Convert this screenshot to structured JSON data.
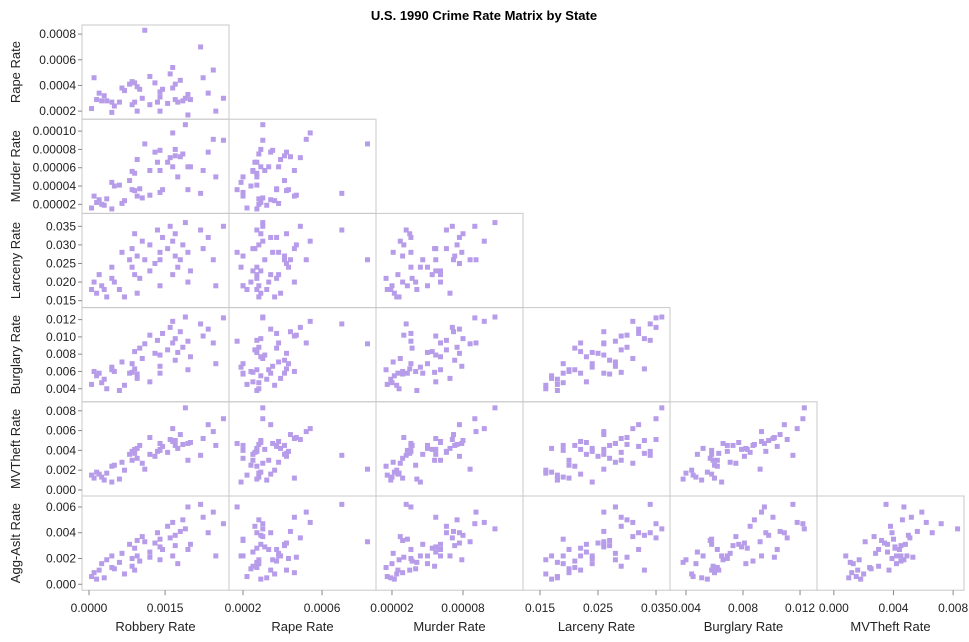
{
  "chart_data": {
    "type": "scatter",
    "title": "U.S. 1990 Crime Rate Matrix by State",
    "layout": "lower-triangle scatterplot matrix",
    "point_color": "#b79ce9",
    "grid": false,
    "x_variables": [
      "Robbery Rate",
      "Rape Rate",
      "Murder Rate",
      "Larceny Rate",
      "Burglary Rate",
      "MVTheft Rate"
    ],
    "y_variables": [
      "Rape Rate",
      "Murder Rate",
      "Larceny Rate",
      "Burglary Rate",
      "MVTheft Rate",
      "Agg-Aslt Rate"
    ],
    "variables": [
      "Robbery Rate",
      "Rape Rate",
      "Murder Rate",
      "Larceny Rate",
      "Burglary Rate",
      "MVTheft Rate",
      "Agg-Aslt Rate"
    ],
    "x_ticks": [
      [
        "0.0000",
        "0.0015"
      ],
      [
        "0.0002",
        "0.0006"
      ],
      [
        "0.00002",
        "0.00008"
      ],
      [
        "0.015",
        "0.025",
        "0.035"
      ],
      [
        "0.004",
        "0.008",
        "0.012"
      ],
      [
        "0.000",
        "0.004",
        "0.008"
      ]
    ],
    "y_ticks": [
      [
        "0.0002",
        "0.0004",
        "0.0006",
        "0.0008"
      ],
      [
        "0.00002",
        "0.00004",
        "0.00006",
        "0.00008",
        "0.00010"
      ],
      [
        "0.015",
        "0.020",
        "0.025",
        "0.030",
        "0.035"
      ],
      [
        "0.004",
        "0.006",
        "0.008",
        "0.010",
        "0.012"
      ],
      [
        "0.000",
        "0.002",
        "0.004",
        "0.006",
        "0.008"
      ],
      [
        "0.000",
        "0.002",
        "0.004",
        "0.006"
      ]
    ],
    "x_ranges": [
      [
        -0.000138,
        0.00276
      ],
      [
        0.000129,
        0.000873
      ],
      [
        6.5e-06,
        0.0001307
      ],
      [
        0.01207,
        0.03741
      ],
      [
        0.00288,
        0.01319
      ],
      [
        -0.00113,
        0.00873
      ]
    ],
    "y_ranges": [
      [
        0.000137,
        0.000871
      ],
      [
        1.01e-05,
        0.000113
      ],
      [
        0.01313,
        0.03847
      ],
      [
        0.00249,
        0.01339
      ],
      [
        -0.00061,
        0.00891
      ],
      [
        -0.00046,
        0.00685
      ]
    ],
    "states": [
      [
        5e-05,
        0.00022,
        1.6e-05,
        0.018,
        0.0045,
        0.0015,
        0.0006
      ],
      [
        0.0001,
        0.00046,
        2.9e-05,
        0.02,
        0.006,
        0.0012,
        0.0009
      ],
      [
        0.00015,
        0.00029,
        2.2e-05,
        0.017,
        0.0055,
        0.0018,
        0.0004
      ],
      [
        0.0002,
        0.00034,
        2.5e-05,
        0.022,
        0.0058,
        0.0016,
        0.0011
      ],
      [
        0.00025,
        0.00028,
        2e-05,
        0.019,
        0.0047,
        0.0013,
        0.0016
      ],
      [
        0.00035,
        0.00028,
        2.6e-05,
        0.016,
        0.004,
        0.0017,
        0.0019
      ],
      [
        0.00045,
        0.00027,
        1.5e-05,
        0.021,
        0.0062,
        0.0024,
        0.0013
      ],
      [
        0.00045,
        0.00019,
        4.4e-05,
        0.024,
        0.0065,
        0.0008,
        0.0022
      ],
      [
        0.0006,
        0.00027,
        4.1e-05,
        0.018,
        0.0038,
        0.0011,
        0.0017
      ],
      [
        0.00065,
        0.00038,
        2.1e-05,
        0.028,
        0.0071,
        0.0028,
        0.0024
      ],
      [
        0.0008,
        0.00041,
        4.6e-05,
        0.026,
        0.0058,
        0.0036,
        0.0031
      ],
      [
        0.00085,
        0.00043,
        3.6e-05,
        0.024,
        0.0069,
        0.0039,
        0.002
      ],
      [
        0.00085,
        0.00025,
        5.6e-05,
        0.029,
        0.0059,
        0.003,
        0.0014
      ],
      [
        0.0009,
        0.00027,
        5.4e-05,
        0.022,
        0.0083,
        0.0041,
        0.0028
      ],
      [
        0.0009,
        0.00042,
        3.5e-05,
        0.033,
        0.0063,
        0.0037,
        0.0011
      ],
      [
        0.00095,
        0.00039,
        6.9e-05,
        0.017,
        0.0052,
        0.0042,
        0.0022
      ],
      [
        0.00095,
        0.0002,
        2.9e-05,
        0.027,
        0.0057,
        0.0032,
        0.0034
      ],
      [
        0.001,
        0.00037,
        3.7e-05,
        0.021,
        0.0087,
        0.0045,
        0.0018
      ],
      [
        0.00105,
        0.0003,
        2.7e-05,
        0.031,
        0.0075,
        0.0027,
        0.0037
      ],
      [
        0.0011,
        0.00083,
        8.6e-05,
        0.026,
        0.0092,
        0.0021,
        0.0033
      ],
      [
        0.0012,
        0.00025,
        5.7e-05,
        0.023,
        0.0048,
        0.0036,
        0.0025
      ],
      [
        0.0012,
        0.00047,
        3e-05,
        0.03,
        0.0102,
        0.0053,
        0.0021
      ],
      [
        0.0013,
        0.00042,
        7.7e-05,
        0.025,
        0.0081,
        0.0034,
        0.0032
      ],
      [
        0.00135,
        0.00027,
        6.6e-05,
        0.034,
        0.0096,
        0.0039,
        0.004
      ],
      [
        0.0014,
        0.00035,
        7.9e-05,
        0.028,
        0.0066,
        0.0047,
        0.0019
      ],
      [
        0.0014,
        0.0002,
        3.3e-05,
        0.019,
        0.0058,
        0.004,
        0.0035
      ],
      [
        0.00145,
        0.00037,
        3.6e-05,
        0.032,
        0.0104,
        0.0044,
        0.0027
      ],
      [
        0.00155,
        0.00026,
        6.6e-05,
        0.029,
        0.0085,
        0.0038,
        0.0045
      ],
      [
        0.0016,
        0.00049,
        7.1e-05,
        0.035,
        0.0111,
        0.0051,
        0.0036
      ],
      [
        0.00165,
        0.00038,
        6.1e-05,
        0.022,
        0.0093,
        0.0049,
        0.0022
      ],
      [
        0.00165,
        0.00054,
        9.8e-05,
        0.031,
        0.0118,
        0.0062,
        0.0048
      ],
      [
        0.0017,
        0.00041,
        7.3e-05,
        0.027,
        0.0073,
        0.0045,
        0.003
      ],
      [
        0.0017,
        0.00029,
        8e-05,
        0.033,
        0.0098,
        0.005,
        0.0038
      ],
      [
        0.00175,
        0.00027,
        5e-05,
        0.024,
        0.0082,
        0.0042,
        0.0016
      ],
      [
        0.0018,
        0.00044,
        7.2e-05,
        0.026,
        0.0106,
        0.0056,
        0.0041
      ],
      [
        0.00185,
        0.00028,
        7.5e-05,
        0.03,
        0.0088,
        0.0046,
        0.005
      ],
      [
        0.0019,
        0.0003,
        0.000107,
        0.036,
        0.0123,
        0.0083,
        0.0043
      ],
      [
        0.00195,
        0.00033,
        6.1e-05,
        0.02,
        0.0062,
        0.003,
        0.0027
      ],
      [
        0.00195,
        0.00017,
        3.6e-05,
        0.028,
        0.0095,
        0.0047,
        0.006
      ],
      [
        0.002,
        0.00029,
        6.1e-05,
        0.023,
        0.0077,
        0.0048,
        0.0031
      ],
      [
        0.0022,
        0.0007,
        3.2e-05,
        0.034,
        0.0115,
        0.0035,
        0.0062
      ],
      [
        0.00225,
        0.00046,
        5.7e-05,
        0.029,
        0.0101,
        0.0052,
        0.0052
      ],
      [
        0.00235,
        0.00034,
        7.7e-05,
        0.032,
        0.0109,
        0.0066,
        0.004
      ],
      [
        0.00245,
        0.00052,
        9.1e-05,
        0.026,
        0.0093,
        0.0059,
        0.0056
      ],
      [
        0.0025,
        0.0002,
        5e-05,
        0.019,
        0.0069,
        0.0045,
        0.0022
      ],
      [
        0.00265,
        0.0003,
        9e-05,
        0.035,
        0.0122,
        0.0072,
        0.0047
      ],
      [
        0.0007,
        0.00036,
        2.4e-05,
        0.016,
        0.0044,
        0.002,
        0.0008
      ],
      [
        0.0003,
        0.00032,
        1.9e-05,
        0.018,
        0.0051,
        0.001,
        0.0005
      ],
      [
        0.0014,
        0.00031,
        5.7e-05,
        0.026,
        0.0079,
        0.0041,
        0.0029
      ],
      [
        0.0005,
        0.00024,
        4e-05,
        0.02,
        0.006,
        0.0025,
        0.0012
      ]
    ]
  }
}
